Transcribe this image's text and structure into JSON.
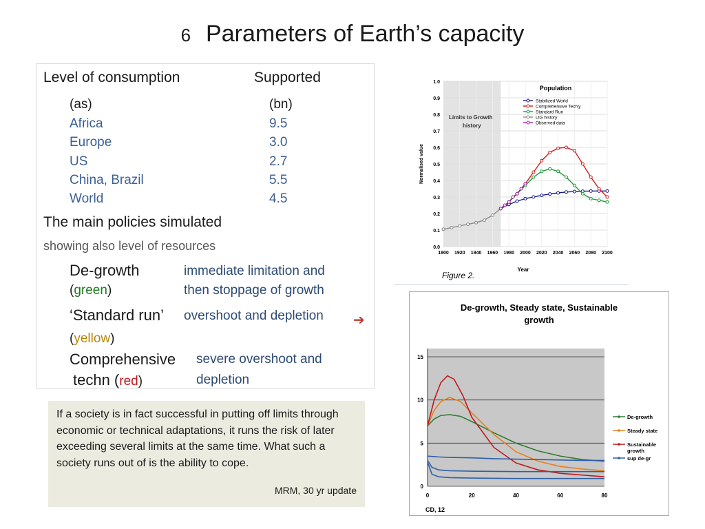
{
  "slide": {
    "number": "6",
    "title": "Parameters of  Earth’s capacity"
  },
  "consumption": {
    "heading_left": "Level of consumption",
    "heading_right": "Supported",
    "sub_left": "(as)",
    "sub_right": "(bn)",
    "rows": [
      {
        "region": "Africa",
        "value": "9.5"
      },
      {
        "region": "Europe",
        "value": "3.0"
      },
      {
        "region": "US",
        "value": "2.7"
      },
      {
        "region": "China, Brazil",
        "value": "5.5"
      },
      {
        "region": "World",
        "value": "4.5"
      }
    ]
  },
  "policies": {
    "heading": "The main policies simulated",
    "subheading": "showing also level of resources",
    "degrowth": {
      "name": "De-growth",
      "color_open": "(",
      "color_word": "green",
      "color_close": ")",
      "desc1": "immediate limitation and",
      "desc2": "then stoppage of growth"
    },
    "standard": {
      "name": "‘Standard run’",
      "desc": "overshoot and depletion",
      "color_open": "(",
      "color_word": "yellow",
      "color_close": ")"
    },
    "comprehensive": {
      "name1": "Comprehensive",
      "name2": "techn (",
      "color_word": "red",
      "color_close": ")",
      "desc1": "severe overshoot and",
      "desc2": "depletion"
    }
  },
  "note": {
    "text": "If a society is in fact successful in putting off limits through economic or technical adaptations, it runs the risk of later exceeding several limits at the same time. What such a society runs out of is the ability to cope.",
    "source": "MRM, 30 yr update"
  },
  "arrow_icon": "right-arrow-icon",
  "chart_data": [
    {
      "type": "line",
      "title": "Population",
      "legend_title": "Limits to Growth history",
      "caption": "Figure 2.",
      "xlabel": "Year",
      "ylabel": "Normalised value",
      "xlim": [
        1900,
        2100
      ],
      "ylim": [
        0,
        1.0
      ],
      "x_ticks": [
        1900,
        1920,
        1940,
        1960,
        1980,
        2000,
        2020,
        2040,
        2060,
        2080,
        2100
      ],
      "y_ticks": [
        0.0,
        0.1,
        0.2,
        0.3,
        0.4,
        0.5,
        0.6,
        0.7,
        0.8,
        0.9,
        1.0
      ],
      "series": [
        {
          "name": "Stabilized World",
          "color": "#1a1a8c",
          "x": [
            1970,
            1980,
            1990,
            2000,
            2010,
            2020,
            2030,
            2040,
            2050,
            2060,
            2070,
            2080,
            2090,
            2100
          ],
          "y": [
            0.23,
            0.255,
            0.275,
            0.29,
            0.3,
            0.31,
            0.318,
            0.325,
            0.33,
            0.333,
            0.335,
            0.336,
            0.336,
            0.336
          ]
        },
        {
          "name": "Comprehensive Tech'y",
          "color": "#d01c1c",
          "x": [
            1970,
            1980,
            1990,
            2000,
            2010,
            2020,
            2030,
            2040,
            2050,
            2060,
            2070,
            2080,
            2090,
            2100
          ],
          "y": [
            0.23,
            0.27,
            0.32,
            0.38,
            0.45,
            0.52,
            0.57,
            0.595,
            0.6,
            0.58,
            0.5,
            0.42,
            0.35,
            0.3
          ]
        },
        {
          "name": "Standard Run",
          "color": "#1f9a3c",
          "x": [
            1970,
            1980,
            1990,
            2000,
            2010,
            2020,
            2030,
            2040,
            2050,
            2060,
            2070,
            2080,
            2090,
            2100
          ],
          "y": [
            0.23,
            0.27,
            0.32,
            0.37,
            0.42,
            0.455,
            0.47,
            0.455,
            0.42,
            0.37,
            0.32,
            0.29,
            0.28,
            0.27
          ]
        },
        {
          "name": "LtG history",
          "color": "#8a8a8a",
          "x": [
            1900,
            1910,
            1920,
            1930,
            1940,
            1950,
            1960,
            1970
          ],
          "y": [
            0.105,
            0.115,
            0.125,
            0.135,
            0.145,
            0.16,
            0.19,
            0.23
          ]
        },
        {
          "name": "Observed data",
          "color": "#a020a0",
          "x": [
            1970,
            1975,
            1980,
            1985,
            1990,
            1995,
            2000
          ],
          "y": [
            0.23,
            0.25,
            0.27,
            0.3,
            0.32,
            0.35,
            0.38
          ]
        }
      ]
    },
    {
      "type": "line",
      "title": "De-growth, Steady state, Sustainable growth",
      "caption": "CD, 12",
      "xlim": [
        0,
        80
      ],
      "ylim": [
        0,
        15
      ],
      "x_ticks": [
        0,
        20,
        40,
        60,
        80
      ],
      "y_ticks": [
        0,
        5,
        10,
        15
      ],
      "series": [
        {
          "name": "De-growth",
          "color": "#2f7d32",
          "x": [
            0,
            3,
            6,
            10,
            15,
            20,
            30,
            40,
            50,
            60,
            70,
            80
          ],
          "y": [
            7.0,
            7.8,
            8.2,
            8.3,
            8.1,
            7.5,
            6.2,
            5.0,
            4.1,
            3.5,
            3.1,
            2.9
          ]
        },
        {
          "name": "Steady state",
          "color": "#e8801a",
          "x": [
            0,
            3,
            6,
            10,
            15,
            20,
            30,
            40,
            50,
            60,
            70,
            80
          ],
          "y": [
            7.0,
            8.8,
            9.8,
            10.3,
            9.8,
            8.5,
            6.0,
            4.0,
            2.9,
            2.3,
            2.0,
            1.8
          ]
        },
        {
          "name": "Sustainable growth",
          "color": "#c0181c",
          "x": [
            0,
            3,
            6,
            9,
            12,
            16,
            20,
            30,
            40,
            50,
            60,
            70,
            80
          ],
          "y": [
            7.0,
            10.0,
            12.0,
            12.8,
            12.4,
            10.5,
            8.0,
            4.5,
            2.7,
            1.9,
            1.5,
            1.3,
            1.1
          ]
        },
        {
          "name": "sup de-gr",
          "color": "#2d5fa8",
          "x": [
            0,
            5,
            10,
            20,
            30,
            40,
            50,
            60,
            70,
            80
          ],
          "y": [
            3.5,
            3.4,
            3.35,
            3.3,
            3.2,
            3.15,
            3.1,
            3.05,
            3.0,
            3.0
          ]
        },
        {
          "name": "",
          "color": "#2d5fa8",
          "x": [
            0,
            2,
            5,
            10,
            20,
            40,
            60,
            80
          ],
          "y": [
            3.0,
            2.2,
            1.9,
            1.8,
            1.75,
            1.7,
            1.7,
            1.7
          ]
        },
        {
          "name": "",
          "color": "#2d5fa8",
          "x": [
            0,
            2,
            5,
            10,
            20,
            40,
            60,
            80
          ],
          "y": [
            2.8,
            1.4,
            1.1,
            1.0,
            0.95,
            0.9,
            0.9,
            0.9
          ]
        }
      ]
    }
  ]
}
